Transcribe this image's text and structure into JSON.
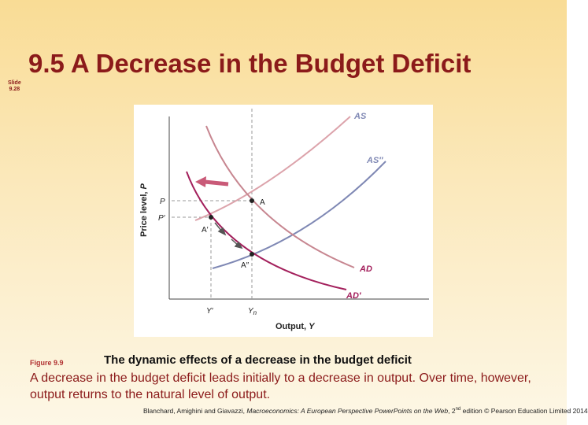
{
  "header": {
    "title": "9.5  A Decrease in the Budget Deficit",
    "slide_label": "Slide",
    "slide_number": "9.28"
  },
  "figure": {
    "curves": {
      "as": "AS",
      "as_new": "AS″",
      "ad": "AD",
      "ad_new": "AD′"
    },
    "points": {
      "a": "A",
      "a_prime": "A′",
      "a_double": "A″"
    },
    "y_axis": {
      "label": "Price level, ",
      "symbol": "P",
      "tick_p": "P",
      "tick_p_prime": "P′"
    },
    "x_axis": {
      "label": "Output, ",
      "symbol": "Y",
      "tick_y_prime": "Y′",
      "tick_yn": "Y",
      "tick_yn_sub": "n"
    }
  },
  "caption": {
    "figure_number": "Figure 9.9",
    "heading": "The dynamic effects of a decrease in the budget deficit",
    "body": "A decrease in the budget deficit leads initially to a decrease in output. Over time, however, output returns to the natural level of output."
  },
  "footer": {
    "authors": "Blanchard, Amighini and Giavazzi,",
    "book": "Macroeconomics: A European Perspective PowerPoints on the Web",
    "edition": ", 2",
    "edition_suffix": "nd",
    "rest": "edition © Pearson Education Limited 2014"
  }
}
